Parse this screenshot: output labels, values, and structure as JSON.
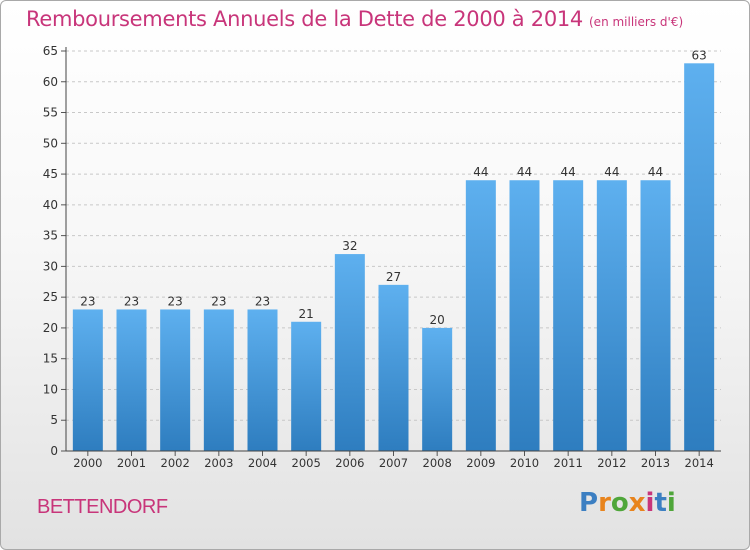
{
  "header": {
    "title": "Remboursements Annuels de la Dette de 2000 à 2014",
    "unit": "(en milliers d'€)"
  },
  "footer": {
    "commune": "BETTENDORF",
    "logo": {
      "letters": [
        "P",
        "r",
        "o",
        "x",
        "i",
        "t",
        "i"
      ],
      "colors": [
        "#3c7fc2",
        "#e8841d",
        "#4fa63a",
        "#e8841d",
        "#c8357a",
        "#3c7fc2",
        "#4fa63a"
      ]
    }
  },
  "chart_data": {
    "type": "bar",
    "title": "Remboursements Annuels de la Dette de 2000 à 2014",
    "xlabel": "",
    "ylabel": "",
    "categories": [
      "2000",
      "2001",
      "2002",
      "2003",
      "2004",
      "2005",
      "2006",
      "2007",
      "2008",
      "2009",
      "2010",
      "2011",
      "2012",
      "2013",
      "2014"
    ],
    "values": [
      23,
      23,
      23,
      23,
      23,
      21,
      32,
      27,
      20,
      44,
      44,
      44,
      44,
      44,
      63
    ],
    "ylim": [
      0,
      65
    ],
    "yticks": [
      0,
      5,
      10,
      15,
      20,
      25,
      30,
      35,
      40,
      45,
      50,
      55,
      60,
      65
    ],
    "grid": true,
    "bar_color": "#4a9de0"
  }
}
